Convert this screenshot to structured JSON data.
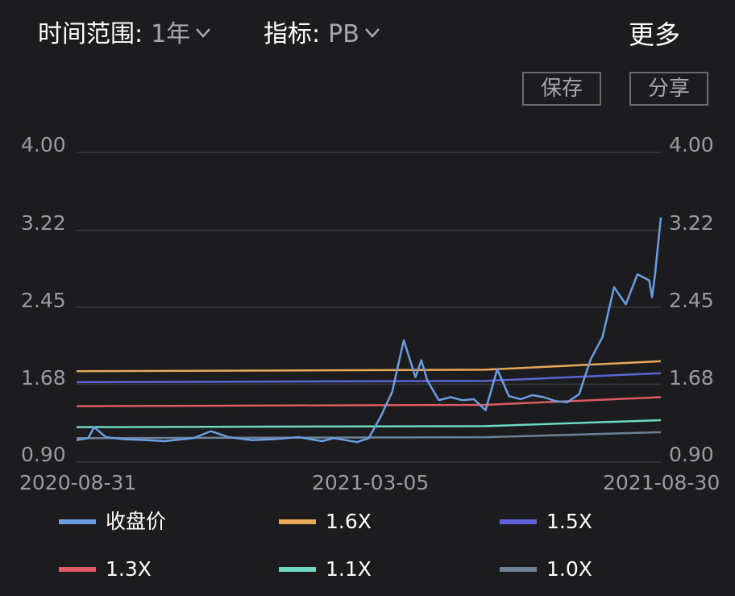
{
  "header": {
    "time_range_label": "时间范围:",
    "time_range_value": "1年",
    "indicator_label": "指标:",
    "indicator_value": "PB",
    "more_label": "更多"
  },
  "actions": {
    "save_label": "保存",
    "share_label": "分享"
  },
  "y_axis": {
    "left_ticks": [
      "4.00",
      "3.22",
      "2.45",
      "1.68",
      "0.90"
    ],
    "right_ticks": [
      "4.00",
      "3.22",
      "2.45",
      "1.68",
      "0.90"
    ]
  },
  "x_axis": {
    "ticks": [
      "2020-08-31",
      "2021-03-05",
      "2021-08-30"
    ]
  },
  "legend": [
    {
      "label": "收盘价",
      "color": "#6a9ee0"
    },
    {
      "label": "1.6X",
      "color": "#e8a85a"
    },
    {
      "label": "1.5X",
      "color": "#5b63d6"
    },
    {
      "label": "1.3X",
      "color": "#e05a66"
    },
    {
      "label": "1.1X",
      "color": "#6ed8c2"
    },
    {
      "label": "1.0X",
      "color": "#6d8296"
    }
  ],
  "colors": {
    "background": "#1c1c1e",
    "grid": "#3a3a3e",
    "tick_text": "#9a9aa0"
  },
  "chart_data": {
    "type": "line",
    "title": "",
    "xlabel": "",
    "ylabel": "",
    "ylim": [
      0.9,
      4.0
    ],
    "y_ticks": [
      4.0,
      3.22,
      2.45,
      1.68,
      0.9
    ],
    "x_ticks": [
      "2020-08-31",
      "2021-03-05",
      "2021-08-30"
    ],
    "grid": true,
    "legend_position": "bottom",
    "x": [
      0,
      0.02,
      0.03,
      0.05,
      0.08,
      0.12,
      0.15,
      0.2,
      0.23,
      0.26,
      0.3,
      0.34,
      0.38,
      0.42,
      0.44,
      0.46,
      0.48,
      0.5,
      0.52,
      0.54,
      0.56,
      0.58,
      0.59,
      0.6,
      0.62,
      0.64,
      0.66,
      0.68,
      0.7,
      0.72,
      0.74,
      0.76,
      0.78,
      0.8,
      0.82,
      0.84,
      0.86,
      0.88,
      0.9,
      0.92,
      0.94,
      0.96,
      0.98,
      0.985,
      0.99,
      1.0
    ],
    "series": [
      {
        "name": "收盘价",
        "color": "#6a9ee0",
        "values": [
          1.12,
          1.14,
          1.25,
          1.15,
          1.13,
          1.12,
          1.11,
          1.14,
          1.21,
          1.15,
          1.12,
          1.13,
          1.15,
          1.11,
          1.14,
          1.12,
          1.1,
          1.14,
          1.35,
          1.6,
          2.12,
          1.75,
          1.92,
          1.72,
          1.52,
          1.55,
          1.52,
          1.53,
          1.42,
          1.83,
          1.56,
          1.53,
          1.57,
          1.55,
          1.51,
          1.5,
          1.58,
          1.93,
          2.15,
          2.65,
          2.48,
          2.78,
          2.72,
          2.55,
          2.78,
          3.35
        ]
      },
      {
        "name": "1.6X",
        "color": "#e8a85a",
        "start": 1.81,
        "end": 1.91
      },
      {
        "name": "1.5X",
        "color": "#5b63d6",
        "start": 1.7,
        "end": 1.79
      },
      {
        "name": "1.3X",
        "color": "#e05a66",
        "start": 1.46,
        "end": 1.55
      },
      {
        "name": "1.1X",
        "color": "#6ed8c2",
        "start": 1.25,
        "end": 1.32
      },
      {
        "name": "1.0X",
        "color": "#6d8296",
        "start": 1.14,
        "end": 1.2
      }
    ]
  }
}
